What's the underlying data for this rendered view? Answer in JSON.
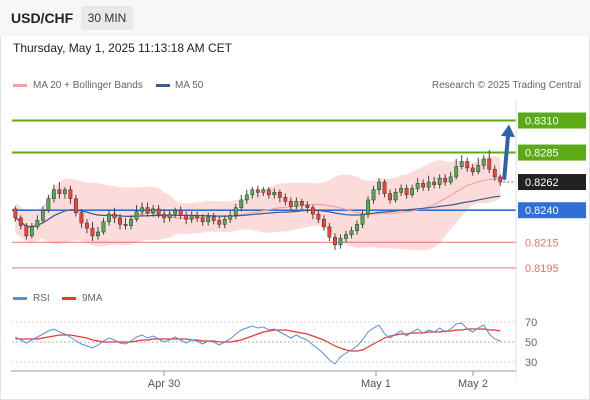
{
  "header": {
    "symbol": "USD/CHF",
    "timeframe": "30 MIN",
    "datetime": "Thursday, May 1, 2025 11:13:18 AM CET"
  },
  "legend": {
    "ma20": "MA 20 + Bollinger Bands",
    "ma50": "MA 50",
    "credit": "Research © 2025 Trading Central",
    "rsi": "RSI",
    "rsi_ma": "9MA"
  },
  "colors": {
    "bull": "#4caf50",
    "bear": "#f44336",
    "ma20": "#f2a3a3",
    "bands": "#fbd5d5",
    "ma50": "#3b5d8f",
    "resistance": "#5aab16",
    "pivot": "#2f6fd6",
    "support": "#e57373",
    "arrow": "#2e62ad",
    "rsi": "#5b8fd9",
    "rsi_ma": "#e53935"
  },
  "chart_data": [
    {
      "type": "candlestick",
      "ylim": [
        0.8184,
        0.8326
      ],
      "levels": [
        {
          "label": "0.8310",
          "value": 0.831,
          "kind": "resistance"
        },
        {
          "label": "0.8285",
          "value": 0.8285,
          "kind": "resistance"
        },
        {
          "label": "0.8262",
          "value": 0.8262,
          "kind": "current"
        },
        {
          "label": "0.8240",
          "value": 0.824,
          "kind": "pivot"
        },
        {
          "label": "0.8215",
          "value": 0.8215,
          "kind": "support"
        },
        {
          "label": "0.8195",
          "value": 0.8195,
          "kind": "support"
        }
      ],
      "x_ticks": [
        "Apr 30",
        "May 1",
        "May 2"
      ],
      "candles": [
        [
          0.8241,
          0.8234,
          0.8243,
          0.8231
        ],
        [
          0.8234,
          0.8228,
          0.8236,
          0.8225
        ],
        [
          0.8228,
          0.822,
          0.823,
          0.8217
        ],
        [
          0.822,
          0.8227,
          0.823,
          0.8218
        ],
        [
          0.8227,
          0.8232,
          0.8236,
          0.8225
        ],
        [
          0.8232,
          0.824,
          0.8243,
          0.823
        ],
        [
          0.824,
          0.8249,
          0.8252,
          0.8238
        ],
        [
          0.8249,
          0.8256,
          0.826,
          0.8246
        ],
        [
          0.8256,
          0.8253,
          0.8262,
          0.8249
        ],
        [
          0.8253,
          0.8256,
          0.8258,
          0.8249
        ],
        [
          0.8256,
          0.8249,
          0.8259,
          0.8245
        ],
        [
          0.8249,
          0.8238,
          0.8252,
          0.8235
        ],
        [
          0.8238,
          0.823,
          0.8241,
          0.8226
        ],
        [
          0.823,
          0.8226,
          0.8233,
          0.8222
        ],
        [
          0.8226,
          0.822,
          0.8231,
          0.8216
        ],
        [
          0.822,
          0.8223,
          0.8227,
          0.8217
        ],
        [
          0.8223,
          0.8231,
          0.8234,
          0.8221
        ],
        [
          0.8231,
          0.8237,
          0.824,
          0.8228
        ],
        [
          0.8237,
          0.8234,
          0.8242,
          0.823
        ],
        [
          0.8234,
          0.8229,
          0.8237,
          0.8225
        ],
        [
          0.8229,
          0.8228,
          0.8234,
          0.8225
        ],
        [
          0.8228,
          0.8233,
          0.8236,
          0.8225
        ],
        [
          0.8233,
          0.8239,
          0.8244,
          0.8231
        ],
        [
          0.8239,
          0.8242,
          0.8246,
          0.8236
        ],
        [
          0.8242,
          0.8238,
          0.8246,
          0.8235
        ],
        [
          0.8238,
          0.8241,
          0.8244,
          0.8235
        ],
        [
          0.8241,
          0.8237,
          0.8244,
          0.8234
        ],
        [
          0.8237,
          0.8234,
          0.8241,
          0.823
        ],
        [
          0.8234,
          0.8237,
          0.824,
          0.8231
        ],
        [
          0.8237,
          0.824,
          0.8242,
          0.8234
        ],
        [
          0.824,
          0.8236,
          0.8243,
          0.8233
        ],
        [
          0.8236,
          0.8233,
          0.8239,
          0.8229
        ],
        [
          0.8233,
          0.8236,
          0.8239,
          0.823
        ],
        [
          0.8236,
          0.8234,
          0.8239,
          0.8231
        ],
        [
          0.8234,
          0.8231,
          0.8237,
          0.8228
        ],
        [
          0.8231,
          0.8235,
          0.8238,
          0.8228
        ],
        [
          0.8235,
          0.8232,
          0.8238,
          0.8229
        ],
        [
          0.8232,
          0.8229,
          0.8235,
          0.8226
        ],
        [
          0.8229,
          0.8233,
          0.8236,
          0.8226
        ],
        [
          0.8233,
          0.8236,
          0.824,
          0.823
        ],
        [
          0.8236,
          0.8242,
          0.8245,
          0.8233
        ],
        [
          0.8242,
          0.8248,
          0.8252,
          0.8239
        ],
        [
          0.8248,
          0.8252,
          0.8256,
          0.8245
        ],
        [
          0.8252,
          0.8256,
          0.8258,
          0.8249
        ],
        [
          0.8256,
          0.8254,
          0.8259,
          0.825
        ],
        [
          0.8254,
          0.8256,
          0.8258,
          0.8251
        ],
        [
          0.8256,
          0.8252,
          0.8258,
          0.8249
        ],
        [
          0.8252,
          0.8254,
          0.8257,
          0.8249
        ],
        [
          0.8254,
          0.825,
          0.8256,
          0.8246
        ],
        [
          0.825,
          0.8247,
          0.8253,
          0.8244
        ],
        [
          0.8247,
          0.8243,
          0.825,
          0.824
        ],
        [
          0.8243,
          0.8247,
          0.825,
          0.8241
        ],
        [
          0.8247,
          0.8244,
          0.8249,
          0.824
        ],
        [
          0.8244,
          0.8242,
          0.8247,
          0.8238
        ],
        [
          0.8242,
          0.8237,
          0.8244,
          0.8233
        ],
        [
          0.8237,
          0.8233,
          0.824,
          0.823
        ],
        [
          0.8233,
          0.8227,
          0.8236,
          0.8224
        ],
        [
          0.8227,
          0.8219,
          0.823,
          0.8216
        ],
        [
          0.8219,
          0.8213,
          0.8222,
          0.8209
        ],
        [
          0.8213,
          0.8218,
          0.8221,
          0.821
        ],
        [
          0.8218,
          0.8221,
          0.8224,
          0.8215
        ],
        [
          0.8221,
          0.8224,
          0.8227,
          0.8218
        ],
        [
          0.8224,
          0.8229,
          0.8232,
          0.8221
        ],
        [
          0.8229,
          0.8237,
          0.824,
          0.8226
        ],
        [
          0.8237,
          0.8248,
          0.8251,
          0.8234
        ],
        [
          0.8248,
          0.8256,
          0.8259,
          0.8245
        ],
        [
          0.8256,
          0.8262,
          0.8265,
          0.8252
        ],
        [
          0.8262,
          0.8253,
          0.8264,
          0.825
        ],
        [
          0.8253,
          0.8248,
          0.8256,
          0.8245
        ],
        [
          0.8248,
          0.8254,
          0.8257,
          0.8246
        ],
        [
          0.8254,
          0.8257,
          0.826,
          0.8251
        ],
        [
          0.8257,
          0.8252,
          0.826,
          0.8249
        ],
        [
          0.8252,
          0.8257,
          0.826,
          0.825
        ],
        [
          0.8257,
          0.8261,
          0.8265,
          0.8254
        ],
        [
          0.8261,
          0.8258,
          0.8264,
          0.8255
        ],
        [
          0.8258,
          0.8262,
          0.8267,
          0.8255
        ],
        [
          0.8262,
          0.826,
          0.8266,
          0.8257
        ],
        [
          0.826,
          0.8265,
          0.8268,
          0.8257
        ],
        [
          0.8265,
          0.8262,
          0.8268,
          0.8259
        ],
        [
          0.8262,
          0.8266,
          0.827,
          0.826
        ],
        [
          0.8266,
          0.8274,
          0.828,
          0.8264
        ],
        [
          0.8274,
          0.8278,
          0.8283,
          0.8272
        ],
        [
          0.8278,
          0.8273,
          0.8281,
          0.827
        ],
        [
          0.8273,
          0.827,
          0.8276,
          0.8267
        ],
        [
          0.827,
          0.8275,
          0.8281,
          0.8268
        ],
        [
          0.8275,
          0.828,
          0.8283,
          0.8272
        ],
        [
          0.828,
          0.8272,
          0.8287,
          0.8269
        ],
        [
          0.8272,
          0.8266,
          0.8275,
          0.8263
        ],
        [
          0.8266,
          0.8262,
          0.8268,
          0.8259
        ]
      ]
    },
    {
      "type": "line",
      "ylim": [
        20,
        80
      ],
      "y_ticks": [
        70,
        50,
        30
      ],
      "series": [
        {
          "name": "RSI",
          "values": [
            55,
            52,
            49,
            52,
            55,
            58,
            61,
            63,
            60,
            58,
            55,
            51,
            48,
            46,
            44,
            47,
            51,
            54,
            52,
            49,
            48,
            51,
            55,
            57,
            54,
            56,
            53,
            50,
            52,
            55,
            52,
            49,
            52,
            51,
            48,
            51,
            50,
            47,
            50,
            53,
            58,
            62,
            64,
            66,
            64,
            65,
            62,
            63,
            60,
            57,
            54,
            57,
            54,
            52,
            47,
            43,
            38,
            32,
            28,
            35,
            39,
            42,
            46,
            52,
            60,
            64,
            67,
            58,
            54,
            58,
            61,
            56,
            60,
            63,
            59,
            62,
            60,
            64,
            60,
            63,
            68,
            69,
            63,
            60,
            64,
            67,
            58,
            53,
            51
          ]
        },
        {
          "name": "9MA",
          "values": [
            53,
            53,
            53,
            53,
            53,
            54,
            55,
            56,
            57,
            57,
            57,
            56,
            55,
            54,
            52,
            51,
            50,
            50,
            50,
            50,
            50,
            50,
            51,
            52,
            52,
            53,
            53,
            53,
            53,
            53,
            53,
            53,
            52,
            52,
            51,
            51,
            51,
            50,
            50,
            50,
            51,
            52,
            54,
            56,
            58,
            60,
            61,
            62,
            62,
            62,
            61,
            60,
            59,
            58,
            56,
            54,
            52,
            49,
            46,
            44,
            42,
            41,
            41,
            42,
            45,
            48,
            51,
            54,
            56,
            57,
            58,
            58,
            59,
            59,
            59,
            60,
            60,
            60,
            61,
            61,
            62,
            62,
            63,
            63,
            63,
            63,
            62,
            62,
            61
          ]
        }
      ]
    }
  ]
}
